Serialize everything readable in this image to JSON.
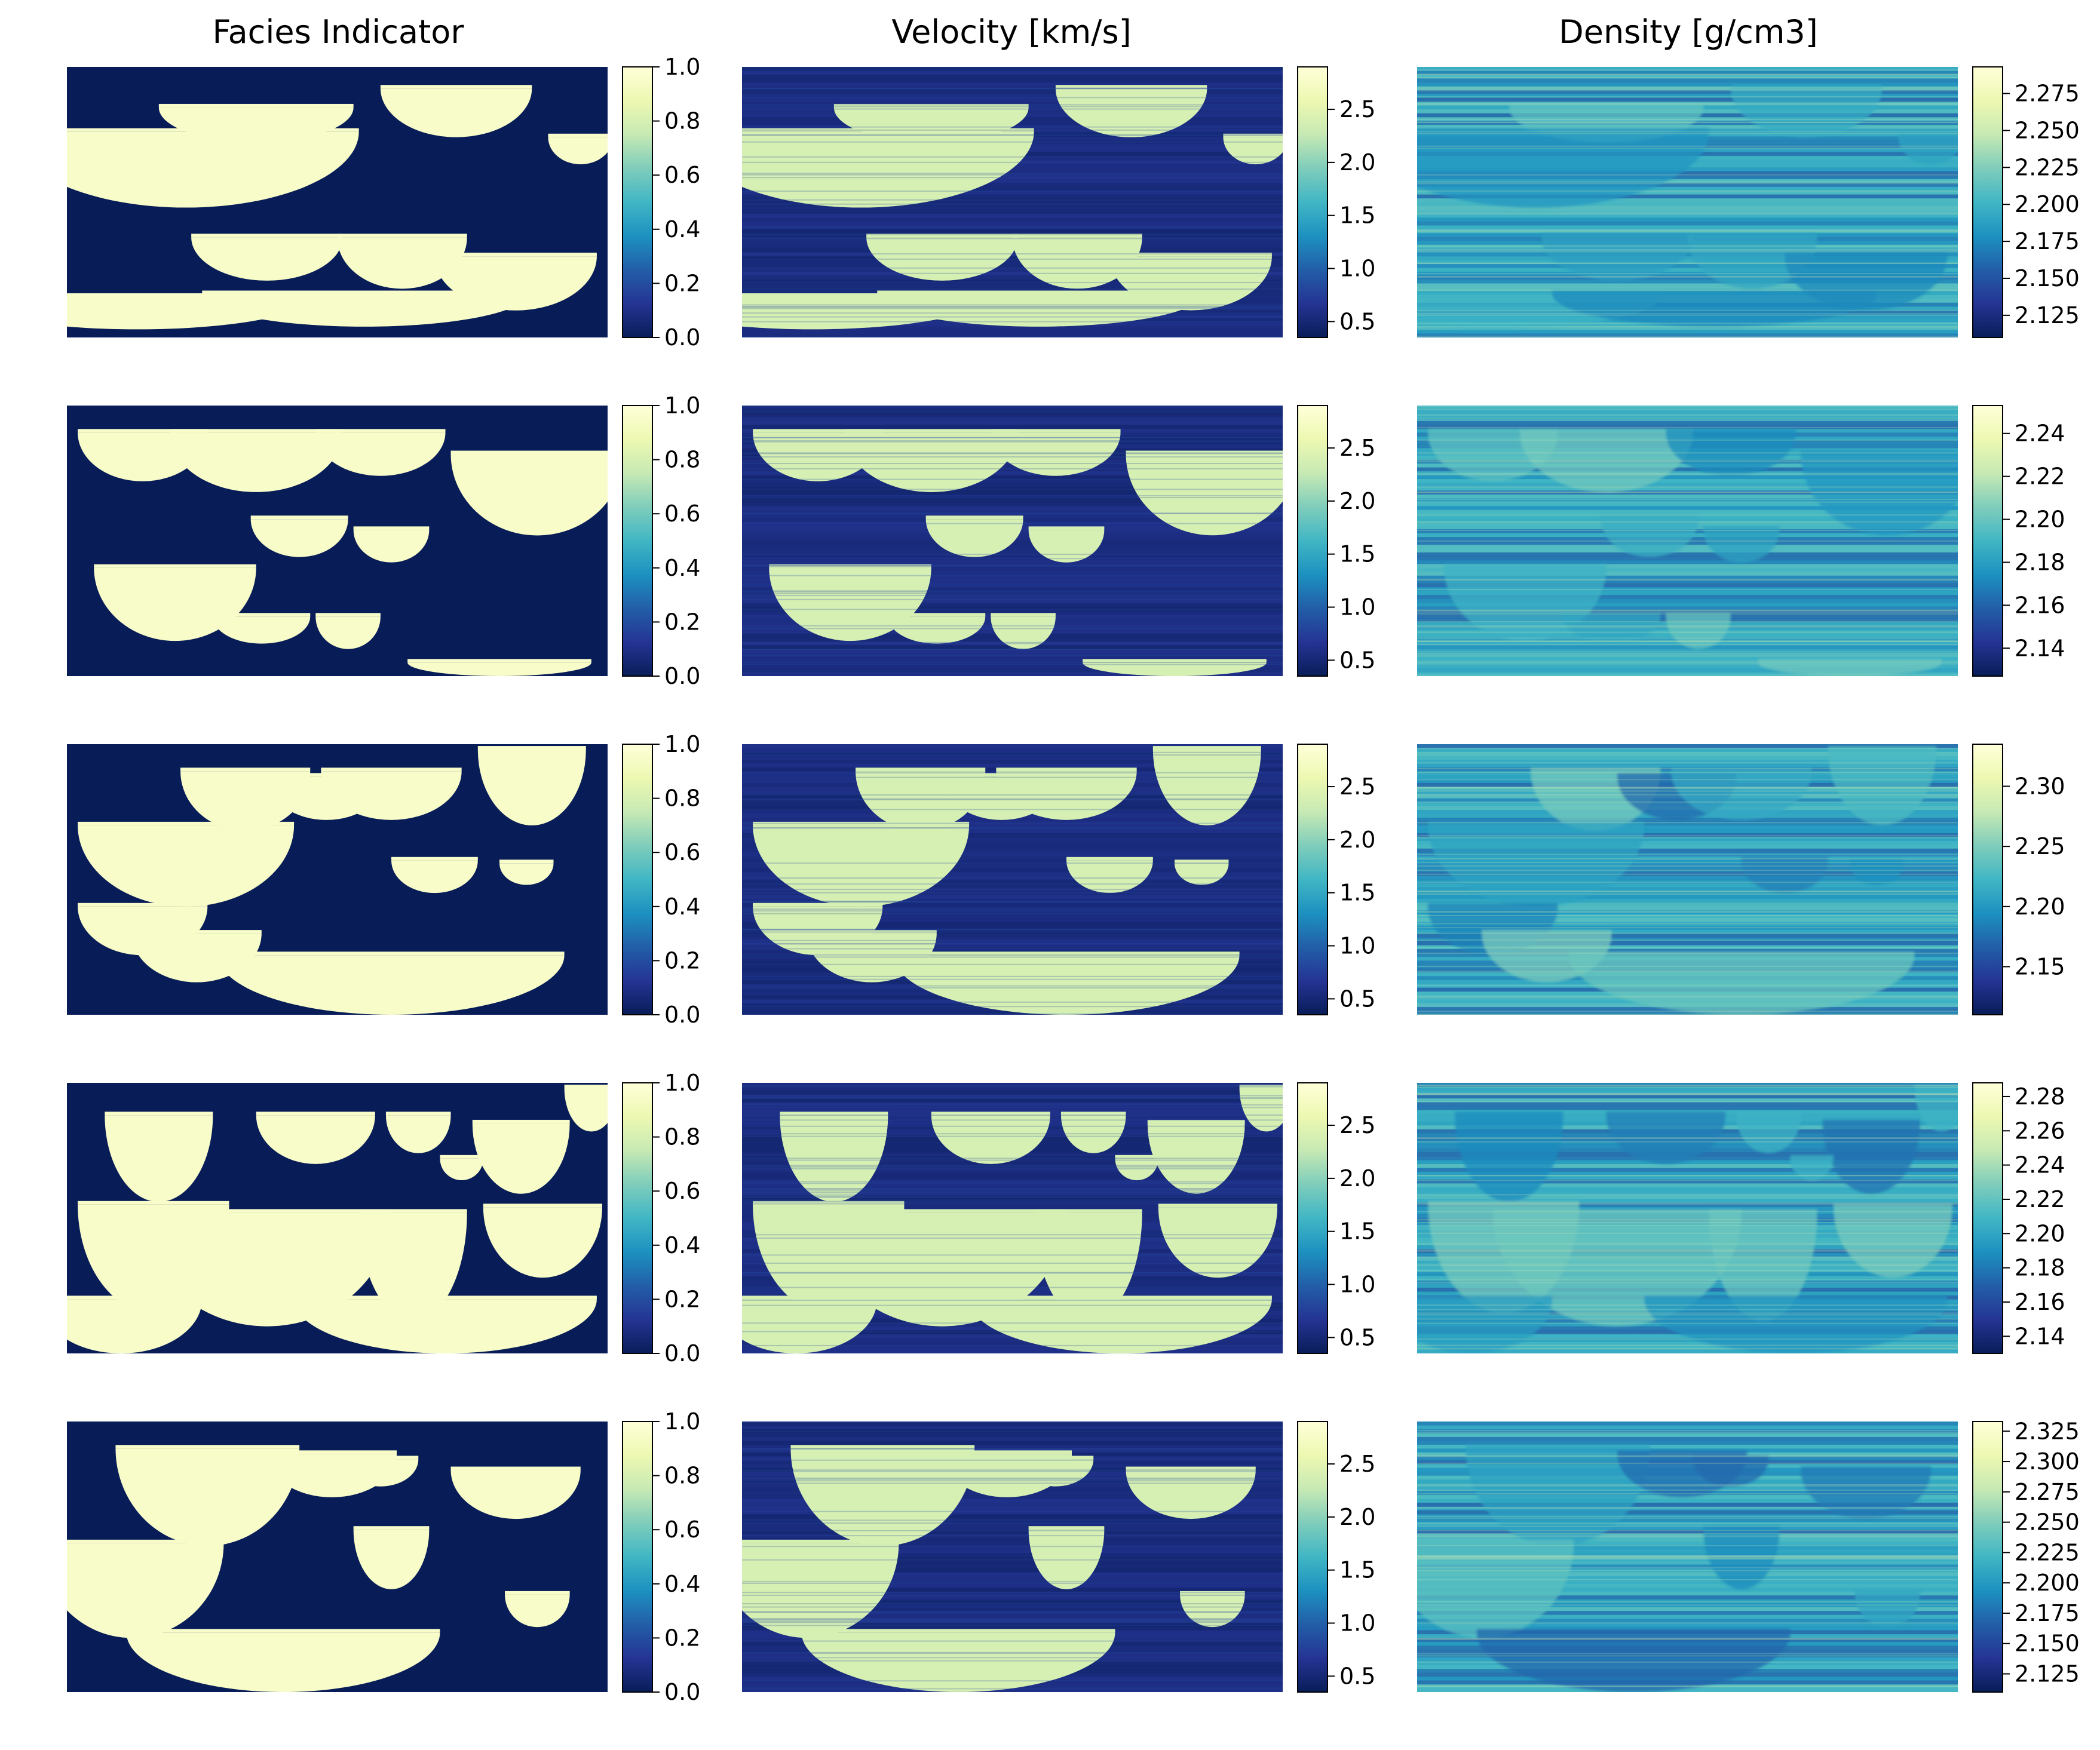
{
  "column_titles": [
    "Facies Indicator",
    "Velocity [km/s]",
    "Density [g/cm3]"
  ],
  "colormap": {
    "name": "YlGnBu",
    "stops": [
      "#081d58",
      "#253494",
      "#225ea8",
      "#1d91c0",
      "#41b6c4",
      "#7fcdbb",
      "#c7e9b4",
      "#edf8b1",
      "#ffffd9"
    ]
  },
  "chart_data": [
    {
      "type": "heatmap",
      "row": 1,
      "column": "Facies Indicator",
      "title": "Facies Indicator",
      "colorbar": {
        "vmin": 0.0,
        "vmax": 1.0,
        "ticks": [
          "0.0",
          "0.2",
          "0.4",
          "0.6",
          "0.8",
          "1.0"
        ]
      }
    },
    {
      "type": "heatmap",
      "row": 1,
      "column": "Velocity [km/s]",
      "title": "Velocity [km/s]",
      "colorbar": {
        "vmin": 0.35,
        "vmax": 2.9,
        "ticks": [
          "0.5",
          "1.0",
          "1.5",
          "2.0",
          "2.5"
        ]
      }
    },
    {
      "type": "heatmap",
      "row": 1,
      "column": "Density [g/cm3]",
      "title": "Density [g/cm3]",
      "colorbar": {
        "vmin": 2.11,
        "vmax": 2.293,
        "ticks": [
          "2.125",
          "2.150",
          "2.175",
          "2.200",
          "2.225",
          "2.250",
          "2.275"
        ]
      }
    },
    {
      "type": "heatmap",
      "row": 2,
      "column": "Facies Indicator",
      "colorbar": {
        "vmin": 0.0,
        "vmax": 1.0,
        "ticks": [
          "0.0",
          "0.2",
          "0.4",
          "0.6",
          "0.8",
          "1.0"
        ]
      }
    },
    {
      "type": "heatmap",
      "row": 2,
      "column": "Velocity [km/s]",
      "colorbar": {
        "vmin": 0.35,
        "vmax": 2.9,
        "ticks": [
          "0.5",
          "1.0",
          "1.5",
          "2.0",
          "2.5"
        ]
      }
    },
    {
      "type": "heatmap",
      "row": 2,
      "column": "Density [g/cm3]",
      "colorbar": {
        "vmin": 2.127,
        "vmax": 2.253,
        "ticks": [
          "2.14",
          "2.16",
          "2.18",
          "2.20",
          "2.22",
          "2.24"
        ]
      }
    },
    {
      "type": "heatmap",
      "row": 3,
      "column": "Facies Indicator",
      "colorbar": {
        "vmin": 0.0,
        "vmax": 1.0,
        "ticks": [
          "0.0",
          "0.2",
          "0.4",
          "0.6",
          "0.8",
          "1.0"
        ]
      }
    },
    {
      "type": "heatmap",
      "row": 3,
      "column": "Velocity [km/s]",
      "colorbar": {
        "vmin": 0.35,
        "vmax": 2.9,
        "ticks": [
          "0.5",
          "1.0",
          "1.5",
          "2.0",
          "2.5"
        ]
      }
    },
    {
      "type": "heatmap",
      "row": 3,
      "column": "Density [g/cm3]",
      "colorbar": {
        "vmin": 2.11,
        "vmax": 2.335,
        "ticks": [
          "2.15",
          "2.20",
          "2.25",
          "2.30"
        ]
      }
    },
    {
      "type": "heatmap",
      "row": 4,
      "column": "Facies Indicator",
      "colorbar": {
        "vmin": 0.0,
        "vmax": 1.0,
        "ticks": [
          "0.0",
          "0.2",
          "0.4",
          "0.6",
          "0.8",
          "1.0"
        ]
      }
    },
    {
      "type": "heatmap",
      "row": 4,
      "column": "Velocity [km/s]",
      "colorbar": {
        "vmin": 0.35,
        "vmax": 2.9,
        "ticks": [
          "0.5",
          "1.0",
          "1.5",
          "2.0",
          "2.5"
        ]
      }
    },
    {
      "type": "heatmap",
      "row": 4,
      "column": "Density [g/cm3]",
      "colorbar": {
        "vmin": 2.13,
        "vmax": 2.288,
        "ticks": [
          "2.14",
          "2.16",
          "2.18",
          "2.20",
          "2.22",
          "2.24",
          "2.26",
          "2.28"
        ]
      }
    },
    {
      "type": "heatmap",
      "row": 5,
      "column": "Facies Indicator",
      "colorbar": {
        "vmin": 0.0,
        "vmax": 1.0,
        "ticks": [
          "0.0",
          "0.2",
          "0.4",
          "0.6",
          "0.8",
          "1.0"
        ]
      }
    },
    {
      "type": "heatmap",
      "row": 5,
      "column": "Velocity [km/s]",
      "colorbar": {
        "vmin": 0.35,
        "vmax": 2.9,
        "ticks": [
          "0.5",
          "1.0",
          "1.5",
          "2.0",
          "2.5"
        ]
      }
    },
    {
      "type": "heatmap",
      "row": 5,
      "column": "Density [g/cm3]",
      "colorbar": {
        "vmin": 2.11,
        "vmax": 2.333,
        "ticks": [
          "2.125",
          "2.150",
          "2.175",
          "2.200",
          "2.225",
          "2.250",
          "2.275",
          "2.300",
          "2.325"
        ]
      }
    }
  ]
}
